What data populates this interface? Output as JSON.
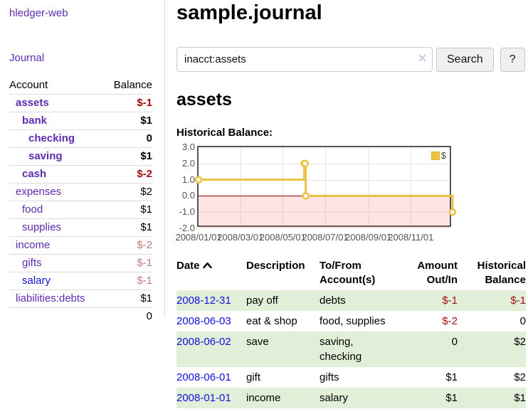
{
  "brand": "hledger-web",
  "nav": {
    "journal": "Journal"
  },
  "accounts_panel": {
    "col_account": "Account",
    "col_balance": "Balance",
    "rows": [
      {
        "name": "assets",
        "balance": "$-1"
      },
      {
        "name": "bank",
        "balance": "$1"
      },
      {
        "name": "checking",
        "balance": "0"
      },
      {
        "name": "saving",
        "balance": "$1"
      },
      {
        "name": "cash",
        "balance": "$-2"
      },
      {
        "name": "expenses",
        "balance": "$2"
      },
      {
        "name": "food",
        "balance": "$1"
      },
      {
        "name": "supplies",
        "balance": "$1"
      },
      {
        "name": "income",
        "balance": "$-2"
      },
      {
        "name": "gifts",
        "balance": "$-1"
      },
      {
        "name": "salary",
        "balance": "$-1"
      },
      {
        "name": "liabilities:debts",
        "balance": "$1"
      }
    ],
    "total": "0"
  },
  "main": {
    "title": "sample.journal",
    "search": {
      "value": "inacct:assets",
      "clear": "×",
      "search_button": "Search",
      "help_button": "?"
    },
    "section_title": "assets",
    "chart_label": "Historical Balance:"
  },
  "chart_data": {
    "type": "line",
    "step": true,
    "title": "Historical Balance",
    "series": [
      {
        "name": "$",
        "color": "#edc240",
        "points": [
          {
            "x": "2008-01-01",
            "y": 1
          },
          {
            "x": "2008-06-01",
            "y": 2
          },
          {
            "x": "2008-06-02",
            "y": 2
          },
          {
            "x": "2008-06-03",
            "y": 0
          },
          {
            "x": "2008-12-31",
            "y": -1
          }
        ]
      }
    ],
    "x_range": [
      "2008-01-01",
      "2008-12-31"
    ],
    "x_ticks": [
      "2008/01/01",
      "2008/03/01",
      "2008/05/01",
      "2008/07/01",
      "2008/09/01",
      "2008/11/01"
    ],
    "y_ticks": [
      "3.0",
      "2.0",
      "1.0",
      "0.0",
      "-1.0",
      "-2.0"
    ],
    "ylim": [
      -2,
      3
    ],
    "grid": true,
    "legend": {
      "label": "$",
      "position": "top-right"
    },
    "negative_region_shaded": true,
    "zero_line_color": "#960000"
  },
  "register": {
    "headers": {
      "date": "Date",
      "description": "Description",
      "accounts": "To/From Account(s)",
      "amount": "Amount Out/In",
      "balance": "Historical Balance"
    },
    "rows": [
      {
        "date": "2008-12-31",
        "description": "pay off",
        "accounts": "debts",
        "amount": "$-1",
        "balance": "$-1"
      },
      {
        "date": "2008-06-03",
        "description": "eat & shop",
        "accounts": "food, supplies",
        "amount": "$-2",
        "balance": "0"
      },
      {
        "date": "2008-06-02",
        "description": "save",
        "accounts": "saving, checking",
        "amount": "0",
        "balance": "$2"
      },
      {
        "date": "2008-06-01",
        "description": "gift",
        "accounts": "gifts",
        "amount": "$1",
        "balance": "$2"
      },
      {
        "date": "2008-01-01",
        "description": "income",
        "accounts": "salary",
        "amount": "$1",
        "balance": "$1"
      }
    ]
  }
}
